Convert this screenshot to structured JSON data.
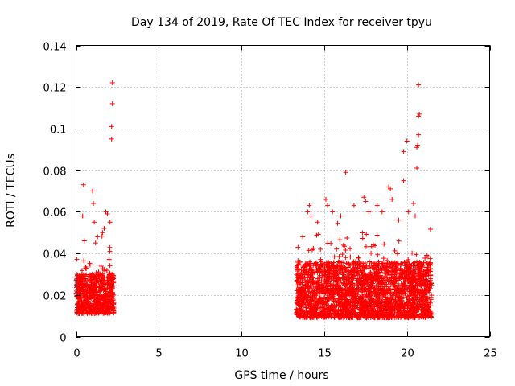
{
  "chart_data": {
    "type": "scatter",
    "title": "Day 134 of 2019, Rate Of TEC Index for receiver tpyu",
    "xlabel": "GPS time / hours",
    "ylabel": "ROTI / TECUs",
    "xlim": [
      0,
      25
    ],
    "ylim": [
      0,
      0.14
    ],
    "xticks": [
      0,
      5,
      10,
      15,
      20,
      25
    ],
    "yticks": [
      0,
      0.02,
      0.04,
      0.06,
      0.08,
      0.1,
      0.12,
      0.14
    ],
    "grid": true,
    "marker": "+",
    "color": "#ff0000",
    "series": [
      {
        "name": "ROTI",
        "clusters": [
          {
            "x_range": [
              0.0,
              2.3
            ],
            "y_base_range": [
              0.011,
              0.03
            ],
            "count": 700
          },
          {
            "x_range": [
              13.3,
              21.5
            ],
            "y_base_range": [
              0.009,
              0.036
            ],
            "count": 2600
          }
        ],
        "points": [
          [
            0.45,
            0.073
          ],
          [
            0.4,
            0.058
          ],
          [
            0.5,
            0.046
          ],
          [
            1.0,
            0.07
          ],
          [
            1.05,
            0.064
          ],
          [
            1.1,
            0.055
          ],
          [
            1.3,
            0.048
          ],
          [
            1.6,
            0.05
          ],
          [
            1.7,
            0.052
          ],
          [
            1.8,
            0.06
          ],
          [
            1.9,
            0.059
          ],
          [
            2.05,
            0.055
          ],
          [
            2.2,
            0.122
          ],
          [
            2.2,
            0.112
          ],
          [
            2.15,
            0.101
          ],
          [
            2.15,
            0.095
          ],
          [
            13.7,
            0.048
          ],
          [
            14.0,
            0.06
          ],
          [
            14.1,
            0.063
          ],
          [
            14.2,
            0.058
          ],
          [
            14.6,
            0.055
          ],
          [
            15.1,
            0.066
          ],
          [
            15.2,
            0.063
          ],
          [
            15.5,
            0.06
          ],
          [
            16.0,
            0.058
          ],
          [
            16.3,
            0.079
          ],
          [
            16.8,
            0.063
          ],
          [
            17.4,
            0.067
          ],
          [
            17.5,
            0.065
          ],
          [
            17.7,
            0.06
          ],
          [
            18.2,
            0.063
          ],
          [
            18.5,
            0.06
          ],
          [
            18.9,
            0.072
          ],
          [
            19.0,
            0.071
          ],
          [
            19.1,
            0.066
          ],
          [
            19.5,
            0.056
          ],
          [
            19.8,
            0.075
          ],
          [
            19.8,
            0.089
          ],
          [
            20.0,
            0.094
          ],
          [
            20.1,
            0.06
          ],
          [
            20.4,
            0.064
          ],
          [
            20.5,
            0.058
          ],
          [
            20.6,
            0.081
          ],
          [
            20.6,
            0.091
          ],
          [
            20.65,
            0.092
          ],
          [
            20.7,
            0.097
          ],
          [
            20.7,
            0.106
          ],
          [
            20.75,
            0.107
          ],
          [
            20.7,
            0.121
          ]
        ]
      }
    ]
  }
}
